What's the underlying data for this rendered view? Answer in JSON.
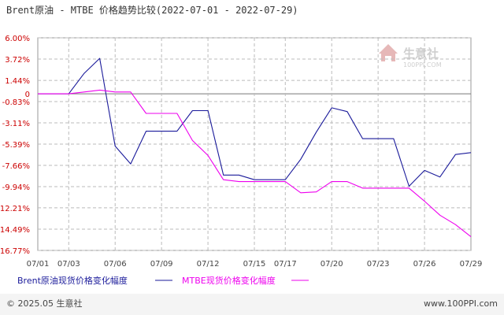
{
  "header": {
    "title": "Brent原油 - MTBE 价格趋势比较(2022-07-01 - 2022-07-29)"
  },
  "watermark": {
    "logo_text": "生意社",
    "logo_sub": "100PPI.COM"
  },
  "footer": {
    "copyright": "© 2025.05 生意社",
    "website": "www.100PPI.com"
  },
  "colors": {
    "series1": "#1a1a9a",
    "series2": "#ee00ee",
    "grid": "#bbbbbb",
    "axis_label": "#cc0000",
    "zero_line": "#777777",
    "background": "#ffffff"
  },
  "chart_data": {
    "type": "line",
    "title": "Brent原油 - MTBE 价格趋势比较(2022-07-01 - 2022-07-29)",
    "xlabel": "",
    "ylabel": "",
    "x_range": [
      "07/01",
      "07/29"
    ],
    "x_ticks": [
      "07/01",
      "07/03",
      "07/06",
      "07/09",
      "07/12",
      "07/15",
      "07/17",
      "07/20",
      "07/23",
      "07/26",
      "07/29"
    ],
    "ylim": [
      -16.77,
      6.0
    ],
    "y_ticks": [
      "6.00%",
      "3.72%",
      "1.44%",
      "0",
      "-0.83%",
      "-3.11%",
      "-5.39%",
      "-7.66%",
      "-9.94%",
      "-12.21%",
      "-14.49%",
      "-16.77%"
    ],
    "y_tick_values": [
      6.0,
      3.72,
      1.44,
      0,
      -0.83,
      -3.11,
      -5.39,
      -7.66,
      -9.94,
      -12.21,
      -14.49,
      -16.77
    ],
    "grid": true,
    "legend_position": "bottom-left",
    "series": [
      {
        "name": "Brent原油现货价格变化幅度",
        "color": "#1a1a9a",
        "points": [
          [
            "07/01",
            0
          ],
          [
            "07/02",
            0
          ],
          [
            "07/03",
            0
          ],
          [
            "07/04",
            2.2
          ],
          [
            "07/05",
            3.8
          ],
          [
            "07/06",
            -5.6
          ],
          [
            "07/07",
            -7.5
          ],
          [
            "07/08",
            -4.0
          ],
          [
            "07/09",
            -4.0
          ],
          [
            "07/10",
            -4.0
          ],
          [
            "07/11",
            -1.8
          ],
          [
            "07/12",
            -1.8
          ],
          [
            "07/13",
            -8.7
          ],
          [
            "07/14",
            -8.7
          ],
          [
            "07/15",
            -9.2
          ],
          [
            "07/16",
            -9.2
          ],
          [
            "07/17",
            -9.2
          ],
          [
            "07/18",
            -7.0
          ],
          [
            "07/19",
            -4.1
          ],
          [
            "07/20",
            -1.5
          ],
          [
            "07/21",
            -1.9
          ],
          [
            "07/22",
            -4.8
          ],
          [
            "07/23",
            -4.8
          ],
          [
            "07/24",
            -4.8
          ],
          [
            "07/25",
            -9.9
          ],
          [
            "07/26",
            -8.2
          ],
          [
            "07/27",
            -8.9
          ],
          [
            "07/28",
            -6.5
          ],
          [
            "07/29",
            -6.3
          ]
        ]
      },
      {
        "name": "MTBE现货价格变化幅度",
        "color": "#ee00ee",
        "points": [
          [
            "07/01",
            0
          ],
          [
            "07/02",
            0
          ],
          [
            "07/03",
            0
          ],
          [
            "07/04",
            0.2
          ],
          [
            "07/05",
            0.4
          ],
          [
            "07/06",
            0.2
          ],
          [
            "07/07",
            0.2
          ],
          [
            "07/08",
            -2.1
          ],
          [
            "07/09",
            -2.1
          ],
          [
            "07/10",
            -2.1
          ],
          [
            "07/11",
            -5.0
          ],
          [
            "07/12",
            -6.6
          ],
          [
            "07/13",
            -9.2
          ],
          [
            "07/14",
            -9.4
          ],
          [
            "07/15",
            -9.4
          ],
          [
            "07/16",
            -9.4
          ],
          [
            "07/17",
            -9.4
          ],
          [
            "07/18",
            -10.6
          ],
          [
            "07/19",
            -10.5
          ],
          [
            "07/20",
            -9.4
          ],
          [
            "07/21",
            -9.4
          ],
          [
            "07/22",
            -10.1
          ],
          [
            "07/23",
            -10.1
          ],
          [
            "07/24",
            -10.1
          ],
          [
            "07/25",
            -10.1
          ],
          [
            "07/26",
            -11.5
          ],
          [
            "07/27",
            -13.0
          ],
          [
            "07/28",
            -14.0
          ],
          [
            "07/29",
            -15.3
          ]
        ]
      }
    ]
  }
}
